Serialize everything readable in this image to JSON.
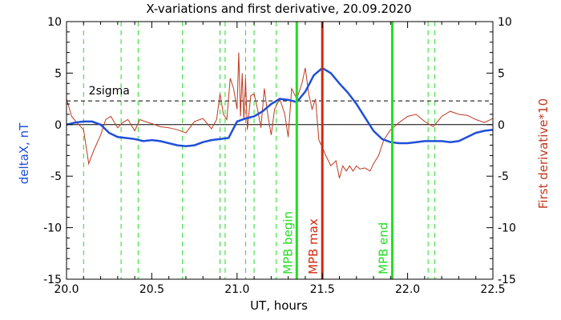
{
  "chart_data": {
    "type": "line",
    "title": "X-variations and first derivative, 20.09.2020",
    "xlabel": "UT, hours",
    "ylabel_left": "deltaX, nT",
    "ylabel_right": "First derivative*10",
    "xlim": [
      20.0,
      22.5
    ],
    "ylim": [
      -15,
      10
    ],
    "x_ticks": [
      "20.0",
      "20.5",
      "21.0",
      "21.5",
      "22.0",
      "22.5"
    ],
    "y_ticks_left": [
      "10",
      "5",
      "0",
      "-5",
      "-10",
      "-15"
    ],
    "y_ticks_right": [
      "10",
      "5",
      "0",
      "-5",
      "-10",
      "-15"
    ],
    "colors": {
      "deltaX": "#1f4fd8",
      "derivative": "#c0391f",
      "green": "#22dd22",
      "red_line": "#d02a0f",
      "axes": "#000000"
    },
    "series": [
      {
        "key": "deltaX",
        "axis": "left",
        "x": [
          20.0,
          20.05,
          20.1,
          20.15,
          20.2,
          20.25,
          20.3,
          20.35,
          20.4,
          20.45,
          20.5,
          20.55,
          20.6,
          20.65,
          20.7,
          20.75,
          20.8,
          20.85,
          20.9,
          20.95,
          21.0,
          21.05,
          21.1,
          21.15,
          21.2,
          21.25,
          21.3,
          21.35,
          21.4,
          21.45,
          21.5,
          21.55,
          21.6,
          21.65,
          21.7,
          21.75,
          21.8,
          21.85,
          21.9,
          21.95,
          22.0,
          22.05,
          22.1,
          22.15,
          22.2,
          22.25,
          22.3,
          22.35,
          22.4,
          22.45,
          22.5
        ],
        "values": [
          0.0,
          0.2,
          0.3,
          0.3,
          0.0,
          -0.8,
          -1.2,
          -1.3,
          -1.4,
          -1.6,
          -1.5,
          -1.6,
          -1.8,
          -2.0,
          -2.1,
          -2.0,
          -1.7,
          -1.5,
          -1.4,
          -1.3,
          0.3,
          0.6,
          0.8,
          1.3,
          2.0,
          2.5,
          2.4,
          2.2,
          3.2,
          4.8,
          5.5,
          5.0,
          4.0,
          3.1,
          2.0,
          0.7,
          -0.6,
          -1.4,
          -1.7,
          -1.8,
          -1.8,
          -1.7,
          -1.6,
          -1.6,
          -1.6,
          -1.7,
          -1.6,
          -1.2,
          -0.8,
          -0.6,
          -0.5
        ]
      },
      {
        "key": "derivative",
        "axis": "right",
        "x": [
          20.0,
          20.03,
          20.06,
          20.1,
          20.13,
          20.16,
          20.2,
          20.23,
          20.26,
          20.3,
          20.33,
          20.36,
          20.4,
          20.43,
          20.46,
          20.5,
          20.55,
          20.6,
          20.65,
          20.7,
          20.75,
          20.8,
          20.85,
          20.88,
          20.9,
          20.92,
          20.94,
          20.96,
          20.98,
          21.0,
          21.01,
          21.02,
          21.03,
          21.04,
          21.05,
          21.06,
          21.08,
          21.1,
          21.12,
          21.14,
          21.16,
          21.18,
          21.2,
          21.22,
          21.25,
          21.28,
          21.3,
          21.32,
          21.35,
          21.38,
          21.4,
          21.42,
          21.44,
          21.46,
          21.48,
          21.5,
          21.52,
          21.55,
          21.58,
          21.6,
          21.62,
          21.64,
          21.66,
          21.68,
          21.7,
          21.72,
          21.75,
          21.78,
          21.8,
          21.83,
          21.86,
          21.9,
          21.95,
          22.0,
          22.05,
          22.1,
          22.15,
          22.2,
          22.25,
          22.3,
          22.35,
          22.4,
          22.45,
          22.5
        ],
        "values": [
          2.5,
          0.8,
          0.2,
          -0.5,
          -3.8,
          -2.5,
          -1.0,
          0.5,
          0.8,
          -0.3,
          0.2,
          0.5,
          -0.6,
          0.5,
          0.3,
          0.1,
          -0.2,
          -0.3,
          -0.5,
          -0.8,
          0.3,
          0.6,
          -0.4,
          0.5,
          3.0,
          1.0,
          0.5,
          4.5,
          3.5,
          1.5,
          7.0,
          0.8,
          5.0,
          0.5,
          4.5,
          -0.5,
          2.8,
          3.0,
          1.5,
          -0.3,
          3.5,
          1.0,
          -1.0,
          1.5,
          2.5,
          1.0,
          -1.2,
          3.5,
          2.5,
          4.0,
          5.5,
          3.0,
          1.5,
          2.5,
          -1.5,
          -2.2,
          -3.0,
          -4.0,
          -3.5,
          -5.2,
          -4.0,
          -4.5,
          -4.0,
          -4.5,
          -4.0,
          -4.3,
          -4.2,
          -4.5,
          -3.8,
          -3.0,
          -1.5,
          -0.5,
          0.2,
          0.8,
          1.0,
          0.3,
          -0.2,
          0.8,
          1.3,
          1.0,
          0.9,
          0.5,
          0.2,
          0.6
        ]
      }
    ],
    "sigma": {
      "label": "2sigma",
      "value": 2.3
    },
    "green_dashed_x": [
      20.1,
      20.32,
      20.42,
      20.68,
      20.9,
      20.93,
      21.05,
      21.1,
      21.23,
      22.12,
      22.16
    ],
    "markers": [
      {
        "label": "MPB begin",
        "x": 21.35,
        "color": "#22dd22"
      },
      {
        "label": "MPB max",
        "x": 21.5,
        "color": "#d02a0f"
      },
      {
        "label": "MPB end",
        "x": 21.91,
        "color": "#22dd22"
      }
    ]
  }
}
